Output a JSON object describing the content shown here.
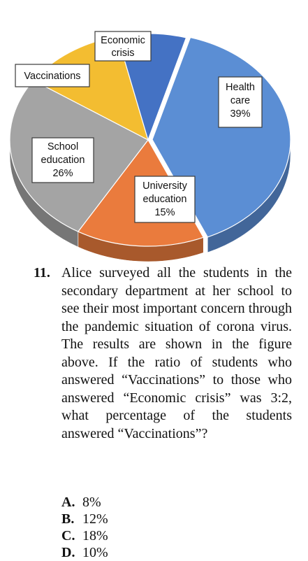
{
  "chart_data": {
    "type": "pie",
    "style": "3d-exploded",
    "title": "",
    "slices": [
      {
        "label": "Health care",
        "value": 39,
        "value_label": "39%",
        "color": "#5b8ed4"
      },
      {
        "label": "University education",
        "value": 15,
        "value_label": "15%",
        "color": "#ea7b3d"
      },
      {
        "label": "School education",
        "value": 26,
        "value_label": "26%",
        "color": "#a4a4a4"
      },
      {
        "label": "Vaccinations",
        "value": 12,
        "value_label": "",
        "color": "#f3bd31"
      },
      {
        "label": "Economic crisis",
        "value": 8,
        "value_label": "",
        "color": "#4472c4"
      }
    ],
    "labels": {
      "health_care": [
        "Health",
        "care",
        "39%"
      ],
      "university_education": [
        "University",
        "education",
        "15%"
      ],
      "school_education": [
        "School",
        "education",
        "26%"
      ],
      "vaccinations": [
        "Vaccinations"
      ],
      "economic_crisis": [
        "Economic",
        "crisis"
      ]
    }
  },
  "question": {
    "number": "11.",
    "text": "Alice surveyed all the students in the secondary department at her school to see their most important concern through the pandemic situation of corona virus. The results are shown in the figure above. If the ratio of students who answered “Vaccinations” to those who answered “Economic crisis” was 3:2, what percentage of the students answered “Vaccinations”?",
    "options": [
      {
        "letter": "A.",
        "text": "8%"
      },
      {
        "letter": "B.",
        "text": "12%"
      },
      {
        "letter": "C.",
        "text": "18%"
      },
      {
        "letter": "D.",
        "text": "10%"
      }
    ]
  }
}
